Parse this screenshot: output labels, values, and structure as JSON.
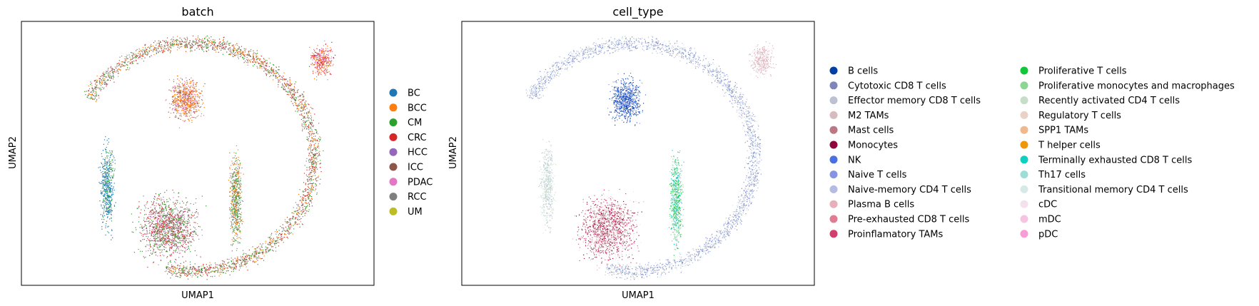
{
  "chart_data": [
    {
      "type": "scatter",
      "title": "batch",
      "xlabel": "UMAP1",
      "ylabel": "UMAP2",
      "grid": false,
      "legend_position": "right",
      "legend_columns": 1,
      "legend": [
        {
          "label": "BC",
          "color": "#1f77b4"
        },
        {
          "label": "BCC",
          "color": "#ff7f0e"
        },
        {
          "label": "CM",
          "color": "#2ca02c"
        },
        {
          "label": "CRC",
          "color": "#d62728"
        },
        {
          "label": "HCC",
          "color": "#9467bd"
        },
        {
          "label": "ICC",
          "color": "#8c564b"
        },
        {
          "label": "PDAC",
          "color": "#e377c2"
        },
        {
          "label": "RCC",
          "color": "#7f7f7f"
        },
        {
          "label": "UM",
          "color": "#bcbd22"
        }
      ]
    },
    {
      "type": "scatter",
      "title": "cell_type",
      "xlabel": "UMAP1",
      "ylabel": "UMAP2",
      "grid": false,
      "legend_position": "right",
      "legend_columns": 2,
      "legend": [
        {
          "label": "B cells",
          "color": "#023fa5"
        },
        {
          "label": "Cytotoxic CD8 T cells",
          "color": "#7d87b9"
        },
        {
          "label": "Effector memory CD8 T cells",
          "color": "#bec1d4"
        },
        {
          "label": "M2 TAMs",
          "color": "#d6bcc0"
        },
        {
          "label": "Mast cells",
          "color": "#bb7784"
        },
        {
          "label": "Monocytes",
          "color": "#8e063b"
        },
        {
          "label": "NK",
          "color": "#4a6fe3"
        },
        {
          "label": "Naive T cells",
          "color": "#8595e1"
        },
        {
          "label": "Naive-memory CD4 T cells",
          "color": "#b5bbe3"
        },
        {
          "label": "Plasma B cells",
          "color": "#e6afb9"
        },
        {
          "label": "Pre-exhausted CD8 T cells",
          "color": "#e07b91"
        },
        {
          "label": "Proinflamatory TAMs",
          "color": "#d33f6a"
        },
        {
          "label": "Proliferative T cells",
          "color": "#11c638"
        },
        {
          "label": "Proliferative monocytes and macrophages",
          "color": "#8dd593"
        },
        {
          "label": "Recently activated CD4 T cells",
          "color": "#c6dec7"
        },
        {
          "label": "Regulatory T cells",
          "color": "#ead3c6"
        },
        {
          "label": "SPP1 TAMs",
          "color": "#f0b98d"
        },
        {
          "label": "T helper cells",
          "color": "#ef9708"
        },
        {
          "label": "Terminally exhausted CD8 T cells",
          "color": "#0fcfc0"
        },
        {
          "label": "Th17 cells",
          "color": "#9cded6"
        },
        {
          "label": "Transitional memory CD4 T cells",
          "color": "#d5eae7"
        },
        {
          "label": "cDC",
          "color": "#f3e1eb"
        },
        {
          "label": "mDC",
          "color": "#f6c4e1"
        },
        {
          "label": "pDC",
          "color": "#f79cd4"
        }
      ]
    }
  ]
}
